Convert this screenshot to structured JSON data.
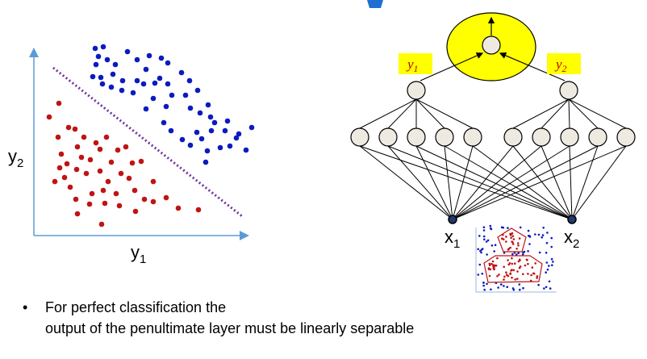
{
  "scatter": {
    "y_axis_label": "y",
    "y_axis_sub": "2",
    "x_axis_label": "y",
    "x_axis_sub": "1",
    "class_colors": {
      "blue": "#0b1bbf",
      "red": "#c01414",
      "boundary": "#7030a0"
    }
  },
  "network": {
    "output_labels": [
      {
        "main": "y",
        "sub": "1"
      },
      {
        "main": "y",
        "sub": "2"
      }
    ],
    "input_labels": [
      {
        "main": "x",
        "sub": "1"
      },
      {
        "main": "x",
        "sub": "2"
      }
    ],
    "colors": {
      "output_ellipse": "#ffff00",
      "label_box": "#ffff00",
      "node_fill": "#eeeae2",
      "input_fill": "#1f3a6e"
    }
  },
  "bullet": {
    "symbol": "•",
    "line1": "For perfect classification the",
    "line2": "output of the penultimate layer must be linearly separable"
  }
}
